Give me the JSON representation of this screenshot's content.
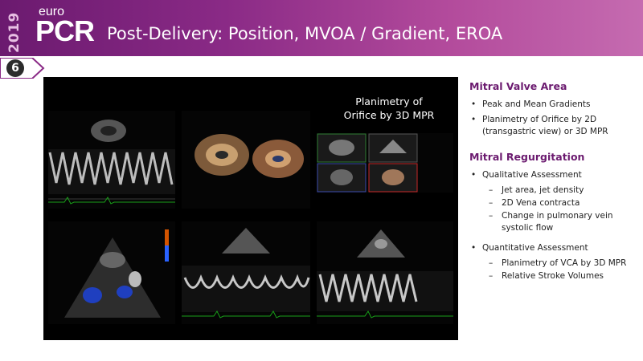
{
  "header": {
    "year": "2019",
    "logo_euro": "euro",
    "logo_pcr": "PCR",
    "title": "Post-Delivery: Position, MVOA / Gradient, EROA"
  },
  "slide_number": "6",
  "images": {
    "caption_line1": "Planimetry of",
    "caption_line2": "Orifice by 3D MPR"
  },
  "content": {
    "section1": {
      "title": "Mitral Valve Area",
      "bullets": [
        "Peak and Mean Gradients",
        "Planimetry of Orifice by 2D (transgastric view) or 3D MPR"
      ]
    },
    "section2": {
      "title": "Mitral Regurgitation",
      "bullets": [
        {
          "text": "Qualitative Assessment",
          "sub": [
            "Jet area, jet density",
            "2D Vena contracta",
            "Change in pulmonary vein systolic flow"
          ]
        },
        {
          "text": "Quantitative Assessment",
          "sub": [
            "Planimetry of VCA by 3D MPR",
            "Relative Stroke Volumes"
          ]
        }
      ]
    }
  },
  "colors": {
    "accent": "#6b1a6f",
    "header_start": "#6b1a6f",
    "header_end": "#c56bb0"
  }
}
